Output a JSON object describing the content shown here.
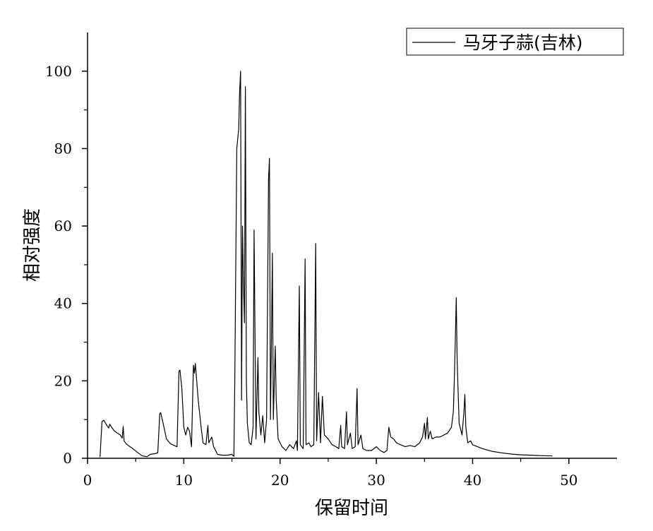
{
  "chart_data": {
    "type": "line",
    "title": "",
    "xlabel": "保留时间",
    "ylabel": "相对强度",
    "xlim": [
      0,
      55
    ],
    "ylim": [
      0,
      110
    ],
    "x_ticks": [
      0,
      10,
      20,
      30,
      40,
      50
    ],
    "y_ticks": [
      0,
      20,
      40,
      60,
      80,
      100
    ],
    "grid": false,
    "legend_position": "top-right",
    "line_color": "#000000",
    "series": [
      {
        "name": "马牙子蒜(吉林)",
        "points": [
          [
            1.3,
            0.3
          ],
          [
            1.4,
            5.0
          ],
          [
            1.5,
            9.5
          ],
          [
            1.7,
            9.8
          ],
          [
            2.0,
            8.5
          ],
          [
            2.2,
            7.8
          ],
          [
            2.3,
            8.8
          ],
          [
            2.5,
            8.0
          ],
          [
            2.8,
            7.0
          ],
          [
            3.1,
            6.5
          ],
          [
            3.4,
            6.0
          ],
          [
            3.6,
            5.2
          ],
          [
            3.7,
            8.2
          ],
          [
            3.8,
            4.5
          ],
          [
            4.0,
            3.8
          ],
          [
            4.3,
            3.2
          ],
          [
            4.7,
            2.5
          ],
          [
            5.2,
            1.5
          ],
          [
            5.7,
            0.6
          ],
          [
            6.2,
            0.4
          ],
          [
            6.5,
            1.0
          ],
          [
            7.0,
            1.2
          ],
          [
            7.3,
            1.4
          ],
          [
            7.5,
            11.5
          ],
          [
            7.6,
            11.8
          ],
          [
            7.9,
            8.5
          ],
          [
            8.2,
            5.0
          ],
          [
            8.6,
            3.8
          ],
          [
            9.0,
            3.3
          ],
          [
            9.3,
            3.0
          ],
          [
            9.5,
            22.5
          ],
          [
            9.6,
            22.8
          ],
          [
            9.8,
            18.0
          ],
          [
            10.0,
            8.0
          ],
          [
            10.2,
            6.0
          ],
          [
            10.4,
            8.0
          ],
          [
            10.6,
            7.0
          ],
          [
            10.8,
            3.0
          ],
          [
            11.0,
            24.0
          ],
          [
            11.1,
            22.0
          ],
          [
            11.2,
            24.5
          ],
          [
            11.5,
            15.0
          ],
          [
            11.8,
            8.0
          ],
          [
            12.0,
            4.0
          ],
          [
            12.3,
            3.5
          ],
          [
            12.5,
            8.5
          ],
          [
            12.6,
            4.0
          ],
          [
            12.9,
            5.5
          ],
          [
            13.1,
            3.0
          ],
          [
            13.5,
            1.0
          ],
          [
            14.0,
            0.8
          ],
          [
            14.5,
            0.8
          ],
          [
            15.0,
            1.0
          ],
          [
            15.2,
            0.5
          ],
          [
            15.3,
            20.0
          ],
          [
            15.5,
            80.0
          ],
          [
            15.7,
            85.0
          ],
          [
            15.8,
            95.0
          ],
          [
            15.9,
            100.0
          ],
          [
            16.0,
            15.0
          ],
          [
            16.1,
            60.0
          ],
          [
            16.2,
            45.0
          ],
          [
            16.3,
            35.0
          ],
          [
            16.4,
            96.0
          ],
          [
            16.5,
            20.0
          ],
          [
            16.6,
            9.0
          ],
          [
            16.8,
            4.0
          ],
          [
            17.0,
            3.5
          ],
          [
            17.2,
            8.0
          ],
          [
            17.3,
            59.0
          ],
          [
            17.5,
            5.0
          ],
          [
            17.7,
            26.0
          ],
          [
            17.8,
            12.0
          ],
          [
            18.0,
            6.0
          ],
          [
            18.2,
            11.0
          ],
          [
            18.4,
            4.0
          ],
          [
            18.6,
            10.0
          ],
          [
            18.8,
            72.0
          ],
          [
            18.9,
            77.5
          ],
          [
            19.0,
            10.0
          ],
          [
            19.1,
            30.0
          ],
          [
            19.2,
            53.0
          ],
          [
            19.3,
            10.0
          ],
          [
            19.5,
            29.0
          ],
          [
            19.6,
            15.0
          ],
          [
            19.8,
            5.0
          ],
          [
            20.2,
            3.0
          ],
          [
            20.6,
            2.0
          ],
          [
            21.0,
            3.5
          ],
          [
            21.4,
            2.5
          ],
          [
            21.7,
            4.5
          ],
          [
            21.8,
            2.0
          ],
          [
            22.0,
            44.5
          ],
          [
            22.1,
            3.5
          ],
          [
            22.4,
            2.5
          ],
          [
            22.6,
            51.5
          ],
          [
            22.7,
            3.5
          ],
          [
            23.0,
            4.0
          ],
          [
            23.2,
            3.0
          ],
          [
            23.5,
            3.5
          ],
          [
            23.7,
            55.5
          ],
          [
            23.8,
            4.5
          ],
          [
            24.0,
            17.0
          ],
          [
            24.2,
            4.0
          ],
          [
            24.4,
            16.0
          ],
          [
            24.6,
            6.0
          ],
          [
            25.0,
            5.0
          ],
          [
            25.4,
            3.5
          ],
          [
            25.8,
            3.0
          ],
          [
            26.1,
            2.5
          ],
          [
            26.3,
            8.5
          ],
          [
            26.4,
            3.0
          ],
          [
            26.7,
            2.5
          ],
          [
            26.9,
            12.0
          ],
          [
            27.0,
            3.5
          ],
          [
            27.3,
            6.5
          ],
          [
            27.5,
            2.5
          ],
          [
            27.8,
            3.0
          ],
          [
            28.0,
            18.0
          ],
          [
            28.1,
            3.5
          ],
          [
            28.4,
            6.0
          ],
          [
            28.6,
            2.5
          ],
          [
            29.0,
            2.0
          ],
          [
            29.5,
            2.0
          ],
          [
            30.0,
            3.0
          ],
          [
            30.4,
            2.0
          ],
          [
            30.8,
            1.5
          ],
          [
            31.1,
            2.0
          ],
          [
            31.3,
            8.0
          ],
          [
            31.5,
            5.5
          ],
          [
            31.8,
            5.0
          ],
          [
            32.1,
            4.0
          ],
          [
            32.5,
            3.5
          ],
          [
            33.0,
            3.0
          ],
          [
            33.5,
            3.3
          ],
          [
            34.0,
            3.0
          ],
          [
            34.5,
            4.0
          ],
          [
            34.8,
            5.5
          ],
          [
            35.0,
            9.0
          ],
          [
            35.1,
            5.0
          ],
          [
            35.3,
            10.5
          ],
          [
            35.4,
            5.0
          ],
          [
            35.6,
            7.0
          ],
          [
            35.8,
            5.0
          ],
          [
            36.2,
            5.5
          ],
          [
            36.6,
            5.5
          ],
          [
            37.0,
            6.0
          ],
          [
            37.4,
            6.5
          ],
          [
            37.8,
            8.0
          ],
          [
            38.0,
            12.0
          ],
          [
            38.1,
            20.0
          ],
          [
            38.2,
            30.0
          ],
          [
            38.3,
            41.5
          ],
          [
            38.4,
            25.0
          ],
          [
            38.6,
            9.0
          ],
          [
            38.9,
            6.0
          ],
          [
            39.1,
            12.0
          ],
          [
            39.2,
            16.5
          ],
          [
            39.3,
            8.0
          ],
          [
            39.5,
            4.0
          ],
          [
            39.8,
            4.5
          ],
          [
            40.0,
            3.5
          ],
          [
            40.5,
            3.0
          ],
          [
            41.0,
            2.5
          ],
          [
            42.0,
            1.8
          ],
          [
            43.0,
            1.4
          ],
          [
            44.0,
            1.1
          ],
          [
            45.0,
            0.9
          ],
          [
            46.0,
            0.8
          ],
          [
            47.0,
            0.7
          ],
          [
            48.3,
            0.6
          ]
        ]
      }
    ]
  }
}
